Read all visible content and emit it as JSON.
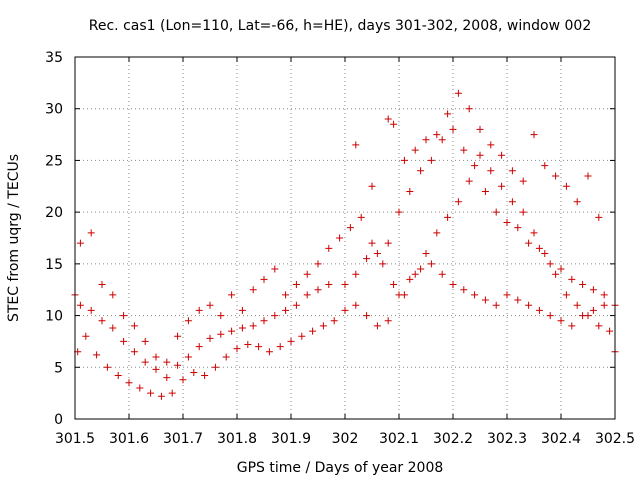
{
  "chart_data": {
    "type": "scatter",
    "title": "Rec. cas1 (Lon=110, Lat=-66, h=HE), days 301-302, 2008, window 002",
    "xlabel": "GPS time / Days of year 2008",
    "ylabel": "STEC from uqrg / TECUs",
    "xlim": [
      301.5,
      302.5
    ],
    "ylim": [
      0,
      35
    ],
    "xticks": [
      "301.5",
      "301.6",
      "301.7",
      "301.8",
      "301.9",
      "302",
      "302.1",
      "302.2",
      "302.3",
      "302.4",
      "302.5"
    ],
    "yticks": [
      "0",
      "5",
      "10",
      "15",
      "20",
      "25",
      "30",
      "35"
    ],
    "grid": true,
    "marker": "+",
    "color": "#cc0000",
    "series": [
      {
        "x": [
          301.5,
          301.505,
          301.51,
          301.52,
          301.53,
          301.54,
          301.55,
          301.56,
          301.57,
          301.58,
          301.59,
          301.6,
          301.61,
          301.62,
          301.63,
          301.64,
          301.65,
          301.66,
          301.67,
          301.68,
          301.69,
          301.7,
          301.71,
          301.72,
          301.73,
          301.74,
          301.75,
          301.76,
          301.77,
          301.78,
          301.79,
          301.8,
          301.81,
          301.82,
          301.83,
          301.84,
          301.85,
          301.86,
          301.87,
          301.88,
          301.89,
          301.9,
          301.91,
          301.92,
          301.93,
          301.94,
          301.95,
          301.96,
          301.97,
          301.98,
          302.0,
          302.02,
          302.04,
          302.06,
          302.08,
          302.1,
          302.12,
          302.14,
          302.16,
          302.18,
          302.2,
          302.22,
          302.24,
          302.26,
          302.28,
          302.3,
          302.32,
          302.34,
          302.36,
          302.38,
          302.4,
          302.42,
          302.44,
          302.46,
          302.48,
          302.5
        ],
        "y": [
          12.0,
          6.5,
          11.0,
          8.0,
          10.5,
          6.2,
          9.5,
          5.0,
          8.8,
          4.2,
          7.5,
          3.5,
          6.5,
          3.0,
          5.5,
          2.5,
          4.8,
          2.2,
          4.0,
          2.5,
          5.2,
          3.8,
          6.0,
          4.5,
          7.0,
          4.2,
          7.8,
          5.0,
          8.2,
          6.0,
          8.5,
          6.8,
          8.8,
          7.2,
          9.0,
          7.0,
          9.5,
          6.5,
          10.0,
          7.0,
          10.5,
          7.5,
          11.0,
          8.0,
          12.0,
          8.5,
          12.5,
          9.0,
          13.0,
          9.5,
          13.0,
          14.0,
          15.5,
          16.0,
          17.0,
          20.0,
          22.0,
          24.0,
          25.0,
          27.0,
          28.0,
          26.0,
          24.5,
          22.0,
          20.0,
          19.0,
          18.5,
          17.0,
          16.5,
          15.0,
          14.5,
          13.5,
          13.0,
          12.5,
          12.0,
          11.0
        ]
      },
      {
        "x": [
          301.51,
          301.53,
          301.55,
          301.57,
          301.59,
          301.61,
          301.63,
          301.65,
          301.67,
          301.69,
          301.71,
          301.73,
          301.75,
          301.77,
          301.79,
          301.81,
          301.83,
          301.85,
          301.87,
          301.89,
          301.91,
          301.93,
          301.95,
          301.97,
          301.99,
          302.01,
          302.03,
          302.05,
          302.07,
          302.09,
          302.11,
          302.13,
          302.15,
          302.17,
          302.19,
          302.21,
          302.23,
          302.25,
          302.27,
          302.29,
          302.31,
          302.33,
          302.35,
          302.37,
          302.39,
          302.41,
          302.43,
          302.45,
          302.47,
          302.49
        ],
        "y": [
          17.0,
          18.0,
          13.0,
          12.0,
          10.0,
          9.0,
          7.5,
          6.0,
          5.5,
          8.0,
          9.5,
          10.5,
          11.0,
          10.0,
          12.0,
          10.5,
          12.5,
          13.5,
          14.5,
          12.0,
          13.0,
          14.0,
          15.0,
          16.5,
          17.5,
          18.5,
          19.5,
          17.0,
          15.0,
          13.0,
          12.0,
          14.0,
          16.0,
          18.0,
          19.5,
          21.0,
          23.0,
          25.5,
          24.0,
          22.5,
          21.0,
          20.0,
          18.0,
          16.0,
          14.0,
          12.0,
          11.0,
          10.0,
          9.0,
          8.5
        ]
      },
      {
        "x": [
          302.0,
          302.02,
          302.04,
          302.06,
          302.08,
          302.1,
          302.12,
          302.14,
          302.16,
          302.18,
          302.2,
          302.22,
          302.24,
          302.26,
          302.28,
          302.3,
          302.32,
          302.34,
          302.36,
          302.38,
          302.4,
          302.42,
          302.44,
          302.46,
          302.48,
          302.5
        ],
        "y": [
          10.5,
          11.0,
          10.0,
          9.0,
          9.5,
          12.0,
          13.5,
          14.5,
          15.0,
          14.0,
          13.0,
          12.5,
          12.0,
          11.5,
          11.0,
          12.0,
          11.5,
          11.0,
          10.5,
          10.0,
          9.5,
          9.0,
          10.0,
          10.5,
          11.0,
          6.5
        ]
      },
      {
        "x": [
          302.02,
          302.05,
          302.08,
          302.09,
          302.11,
          302.13,
          302.15,
          302.17,
          302.19,
          302.21,
          302.23,
          302.25,
          302.27,
          302.29,
          302.31,
          302.33,
          302.35,
          302.37,
          302.39,
          302.41,
          302.43,
          302.45,
          302.47
        ],
        "y": [
          26.5,
          22.5,
          29.0,
          28.5,
          25.0,
          26.0,
          27.0,
          27.5,
          29.5,
          31.5,
          30.0,
          28.0,
          26.5,
          25.5,
          24.0,
          23.0,
          27.5,
          24.5,
          23.5,
          22.5,
          21.0,
          23.5,
          19.5
        ]
      }
    ]
  }
}
